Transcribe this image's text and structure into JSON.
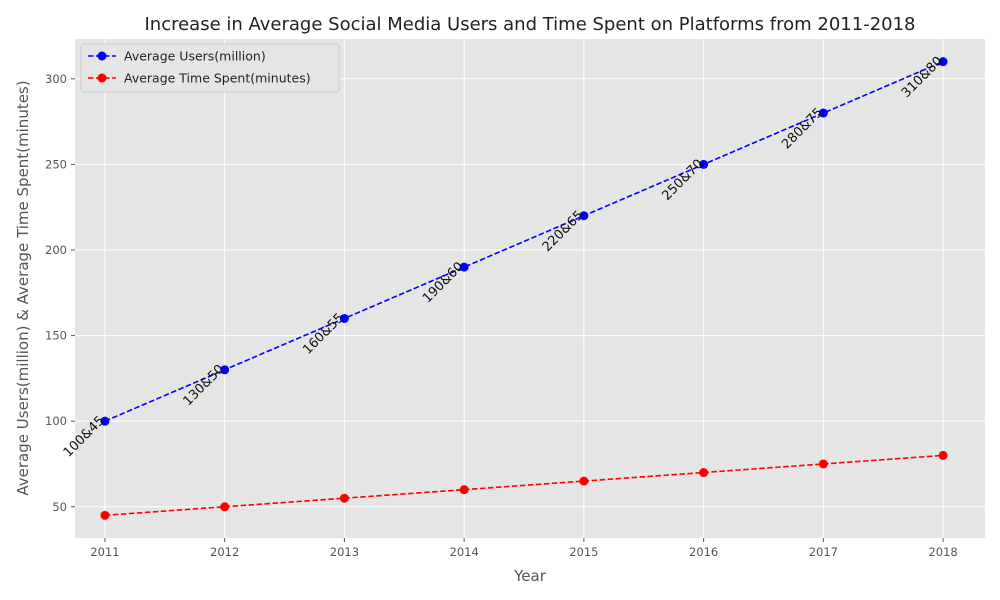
{
  "chart_data": {
    "type": "line",
    "title": "Increase in Average Social Media Users and Time Spent on Platforms from 2011-2018",
    "xlabel": "Year",
    "ylabel": "Average Users(million) & Average Time Spent(minutes)",
    "x": [
      2011,
      2012,
      2013,
      2014,
      2015,
      2016,
      2017,
      2018
    ],
    "xlim": [
      2010.75,
      2018.35
    ],
    "ylim": [
      31.75,
      323.25
    ],
    "yticks": [
      50,
      100,
      150,
      200,
      250,
      300
    ],
    "grid": true,
    "legend_position": "upper-left",
    "series": [
      {
        "name": "Average Users(million)",
        "values": [
          100,
          130,
          160,
          190,
          220,
          250,
          280,
          310
        ],
        "color": "#0000ff",
        "line_style": "dashed",
        "marker": "circle"
      },
      {
        "name": "Average Time Spent(minutes)",
        "values": [
          45,
          50,
          55,
          60,
          65,
          70,
          75,
          80
        ],
        "color": "#ff0000",
        "line_style": "dashed",
        "marker": "circle"
      }
    ],
    "annotations": [
      "100&45",
      "130&50",
      "160&55",
      "190&60",
      "220&65",
      "250&70",
      "280&75",
      "310&80"
    ]
  },
  "colors": {
    "plot_background": "#e5e5e5",
    "grid": "#ffffff",
    "text": "#555555"
  }
}
